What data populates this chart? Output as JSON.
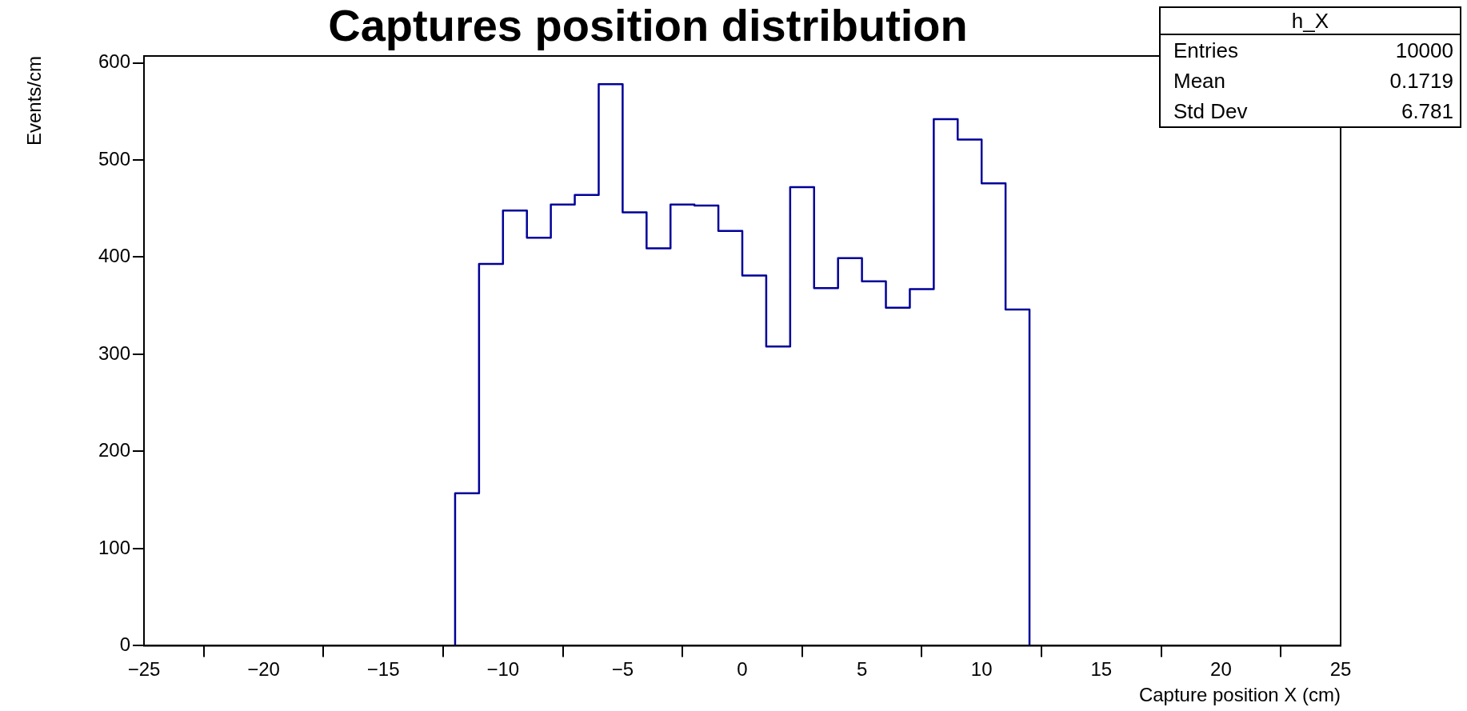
{
  "chart_data": {
    "type": "histogram",
    "title": "Captures position distribution",
    "xlabel": "Capture position X (cm)",
    "ylabel": "Events/cm",
    "bins": [
      -12,
      -11,
      -10,
      -9,
      -8,
      -7,
      -6,
      -5,
      -4,
      -3,
      -2,
      -1,
      0,
      1,
      2,
      3,
      4,
      5,
      6,
      7,
      8,
      9,
      10,
      11,
      12
    ],
    "values": [
      157,
      393,
      448,
      420,
      454,
      464,
      578,
      446,
      409,
      454,
      453,
      427,
      381,
      308,
      472,
      368,
      399,
      375,
      348,
      367,
      542,
      521,
      476,
      346
    ],
    "color": "#000099",
    "xlim": [
      -25,
      25
    ],
    "xticks": [
      {
        "value": -25,
        "label": "−25"
      },
      {
        "value": -20,
        "label": "−20"
      },
      {
        "value": -15,
        "label": "−15"
      },
      {
        "value": -10,
        "label": "−10"
      },
      {
        "value": -5,
        "label": "−5"
      },
      0,
      5,
      10,
      15,
      20,
      25
    ],
    "ylim": [
      0,
      607
    ],
    "yticks": [
      0,
      100,
      200,
      300,
      400,
      500,
      600
    ],
    "grid": false,
    "legend": false,
    "annotations": [
      "h_X",
      "Entries",
      "10000",
      "Mean",
      "0.1719",
      "Std Dev",
      "6.781"
    ]
  }
}
